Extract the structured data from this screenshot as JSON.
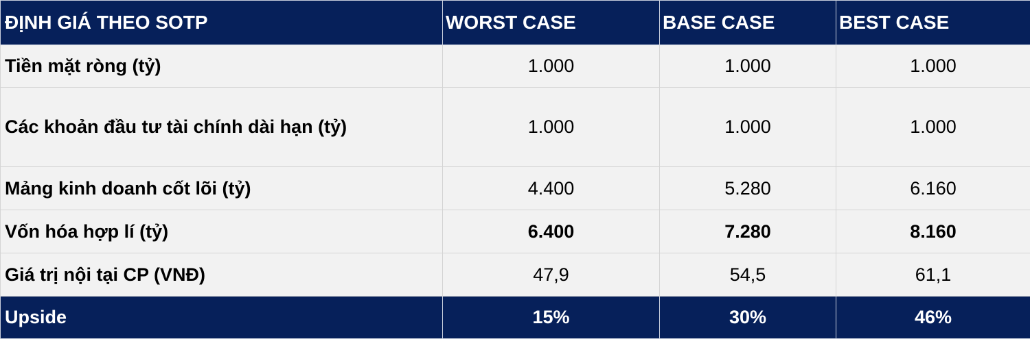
{
  "header": {
    "title": "ĐỊNH GIÁ THEO SOTP",
    "cases": [
      "WORST CASE",
      "BASE CASE",
      "BEST CASE"
    ]
  },
  "rows": [
    {
      "label": "Tiền mặt ròng (tỷ)",
      "values": [
        "1.000",
        "1.000",
        "1.000"
      ]
    },
    {
      "label": "Các khoản đầu tư tài chính dài hạn (tỷ)",
      "values": [
        "1.000",
        "1.000",
        "1.000"
      ]
    },
    {
      "label": "Mảng kinh doanh cốt lõi (tỷ)",
      "values": [
        "4.400",
        "5.280",
        "6.160"
      ]
    },
    {
      "label": "Vốn hóa hợp lí (tỷ)",
      "values": [
        "6.400",
        "7.280",
        "8.160"
      ]
    },
    {
      "label": "Giá trị nội tại CP (VNĐ)",
      "values": [
        "47,9",
        "54,5",
        "61,1"
      ]
    }
  ],
  "footer": {
    "label": "Upside",
    "values": [
      "15%",
      "30%",
      "46%"
    ]
  },
  "colors": {
    "header_bg": "#06205a",
    "row_bg": "#f2f2f2"
  }
}
